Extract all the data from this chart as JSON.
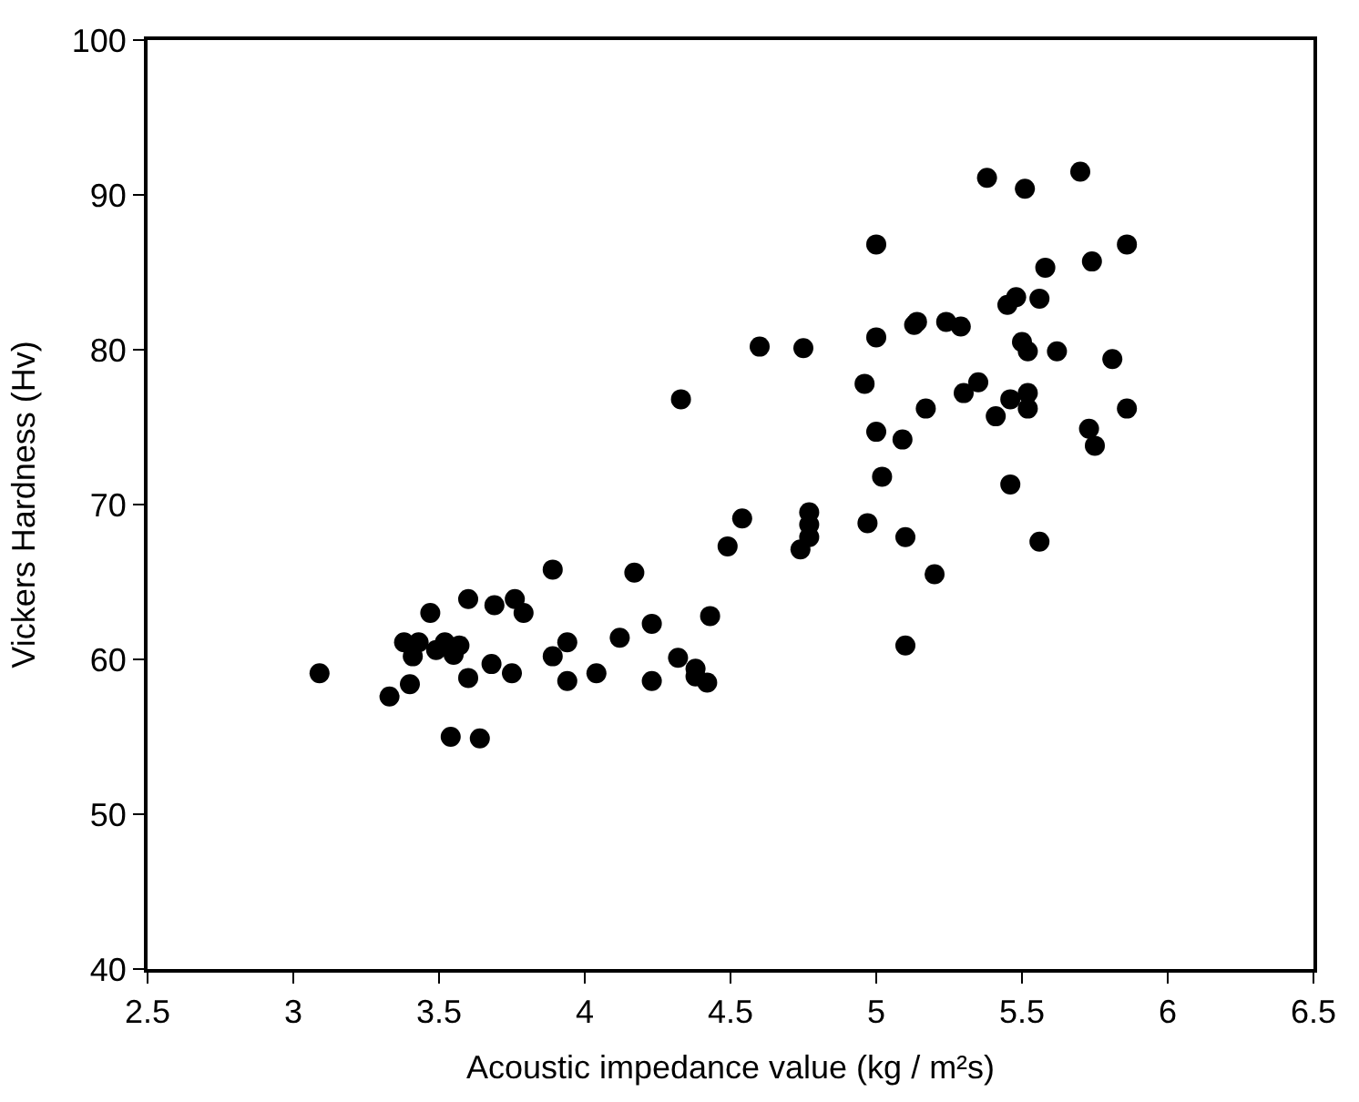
{
  "chart_data": {
    "type": "scatter",
    "xlabel": "Acoustic impedance value (kg / m²s)",
    "ylabel": "Vickers Hardness (Hv)",
    "x": [
      3.09,
      3.33,
      3.4,
      3.38,
      3.43,
      3.41,
      3.47,
      3.49,
      3.52,
      3.55,
      3.57,
      3.54,
      3.64,
      3.6,
      3.6,
      3.69,
      3.68,
      3.76,
      3.79,
      3.75,
      3.89,
      3.89,
      3.94,
      3.94,
      4.04,
      4.12,
      4.17,
      4.23,
      4.23,
      4.32,
      4.38,
      4.38,
      4.42,
      4.43,
      4.49,
      4.54,
      4.74,
      4.77,
      4.77,
      4.77,
      5.38,
      5.51,
      5.7,
      5.0,
      5.86,
      5.58,
      5.74,
      5.45,
      5.48,
      5.56,
      5.0,
      5.13,
      5.14,
      5.24,
      5.29,
      4.6,
      4.75,
      5.5,
      5.52,
      5.62,
      5.81,
      4.96,
      5.17,
      5.3,
      5.35,
      5.41,
      5.46,
      5.52,
      5.52,
      5.86,
      5.0,
      5.09,
      5.73,
      5.75,
      5.02,
      5.46,
      4.97,
      5.1,
      5.56,
      5.2,
      4.33,
      5.1
    ],
    "values": [
      59.1,
      57.6,
      58.4,
      61.1,
      61.1,
      60.2,
      63.0,
      60.6,
      61.1,
      60.3,
      60.9,
      55.0,
      54.9,
      63.9,
      58.8,
      63.5,
      59.7,
      63.9,
      63.0,
      59.1,
      65.8,
      60.2,
      61.1,
      58.6,
      59.1,
      61.4,
      65.6,
      62.3,
      58.6,
      60.1,
      59.4,
      58.9,
      58.5,
      62.8,
      67.3,
      69.1,
      67.1,
      69.5,
      68.7,
      67.9,
      91.1,
      90.4,
      91.5,
      86.8,
      86.8,
      85.3,
      85.7,
      82.9,
      83.4,
      83.3,
      80.8,
      81.6,
      81.8,
      81.8,
      81.5,
      80.2,
      80.1,
      80.5,
      79.9,
      79.9,
      79.4,
      77.8,
      76.2,
      77.2,
      77.9,
      75.7,
      76.8,
      77.2,
      76.2,
      76.2,
      74.7,
      74.2,
      74.9,
      73.8,
      71.8,
      71.3,
      68.8,
      67.9,
      67.6,
      65.5,
      76.8,
      60.9
    ],
    "color": "#000000",
    "marker": "circle",
    "xlim": [
      2.5,
      6.5
    ],
    "xticks": [
      2.5,
      3,
      3.5,
      4,
      4.5,
      5,
      5.5,
      6,
      6.5
    ],
    "ylim": [
      40,
      100
    ],
    "yticks": [
      40,
      50,
      60,
      70,
      80,
      90,
      100
    ]
  }
}
